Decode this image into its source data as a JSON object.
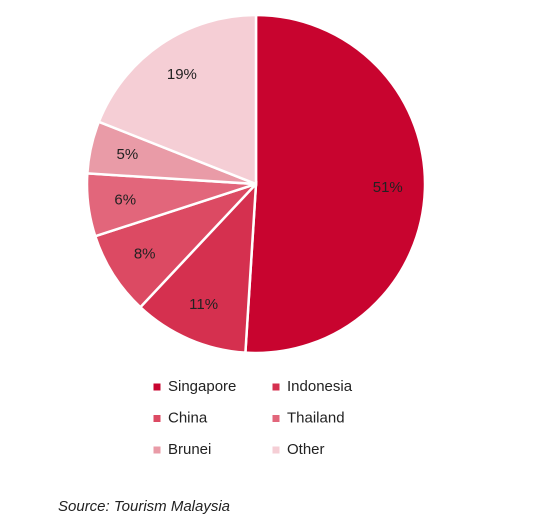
{
  "chart_data": {
    "type": "pie",
    "categories": [
      "Singapore",
      "Indonesia",
      "China",
      "Thailand",
      "Brunei",
      "Other"
    ],
    "values": [
      51,
      11,
      8,
      6,
      5,
      19
    ],
    "value_labels": [
      "51%",
      "11%",
      "8%",
      "6%",
      "5%",
      "19%"
    ],
    "colors": [
      "#c8042f",
      "#d5304f",
      "#dc4a63",
      "#e2667b",
      "#e99ba7",
      "#f5ced5"
    ],
    "source": "Source: Tourism Malaysia"
  }
}
